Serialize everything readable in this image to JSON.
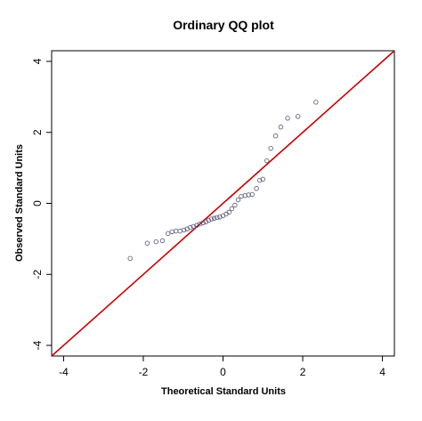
{
  "chart_data": {
    "type": "scatter",
    "title": "Ordinary QQ plot",
    "xlabel": "Theoretical Standard Units",
    "ylabel": "Observed Standard Units",
    "xlim": [
      -4.3,
      4.3
    ],
    "ylim": [
      -4.3,
      4.3
    ],
    "x_ticks": [
      -4,
      -2,
      0,
      2,
      4
    ],
    "y_ticks": [
      -4,
      -2,
      0,
      2,
      4
    ],
    "x_tick_labels": [
      "-4",
      "-2",
      "0",
      "2",
      "4"
    ],
    "y_tick_labels": [
      "-4",
      "-2",
      "0",
      "2",
      "4"
    ],
    "grid": false,
    "reference_line": {
      "slope": 1,
      "intercept": 0,
      "color": "#cc0000"
    },
    "point_color": "#555577",
    "points": [
      {
        "x": -2.33,
        "y": -1.55
      },
      {
        "x": -1.9,
        "y": -1.12
      },
      {
        "x": -1.68,
        "y": -1.08
      },
      {
        "x": -1.52,
        "y": -1.05
      },
      {
        "x": -1.38,
        "y": -0.85
      },
      {
        "x": -1.28,
        "y": -0.8
      },
      {
        "x": -1.18,
        "y": -0.78
      },
      {
        "x": -1.08,
        "y": -0.78
      },
      {
        "x": -0.98,
        "y": -0.75
      },
      {
        "x": -0.9,
        "y": -0.72
      },
      {
        "x": -0.82,
        "y": -0.68
      },
      {
        "x": -0.74,
        "y": -0.65
      },
      {
        "x": -0.66,
        "y": -0.62
      },
      {
        "x": -0.58,
        "y": -0.58
      },
      {
        "x": -0.5,
        "y": -0.55
      },
      {
        "x": -0.43,
        "y": -0.52
      },
      {
        "x": -0.36,
        "y": -0.48
      },
      {
        "x": -0.29,
        "y": -0.44
      },
      {
        "x": -0.22,
        "y": -0.42
      },
      {
        "x": -0.15,
        "y": -0.4
      },
      {
        "x": -0.08,
        "y": -0.38
      },
      {
        "x": 0.0,
        "y": -0.35
      },
      {
        "x": 0.08,
        "y": -0.3
      },
      {
        "x": 0.15,
        "y": -0.25
      },
      {
        "x": 0.22,
        "y": -0.15
      },
      {
        "x": 0.3,
        "y": -0.05
      },
      {
        "x": 0.38,
        "y": 0.1
      },
      {
        "x": 0.46,
        "y": 0.2
      },
      {
        "x": 0.55,
        "y": 0.22
      },
      {
        "x": 0.64,
        "y": 0.24
      },
      {
        "x": 0.73,
        "y": 0.25
      },
      {
        "x": 0.84,
        "y": 0.42
      },
      {
        "x": 0.92,
        "y": 0.65
      },
      {
        "x": 1.0,
        "y": 0.68
      },
      {
        "x": 1.1,
        "y": 1.2
      },
      {
        "x": 1.2,
        "y": 1.55
      },
      {
        "x": 1.32,
        "y": 1.9
      },
      {
        "x": 1.45,
        "y": 2.15
      },
      {
        "x": 1.62,
        "y": 2.4
      },
      {
        "x": 1.88,
        "y": 2.45
      },
      {
        "x": 2.33,
        "y": 2.85
      }
    ]
  }
}
